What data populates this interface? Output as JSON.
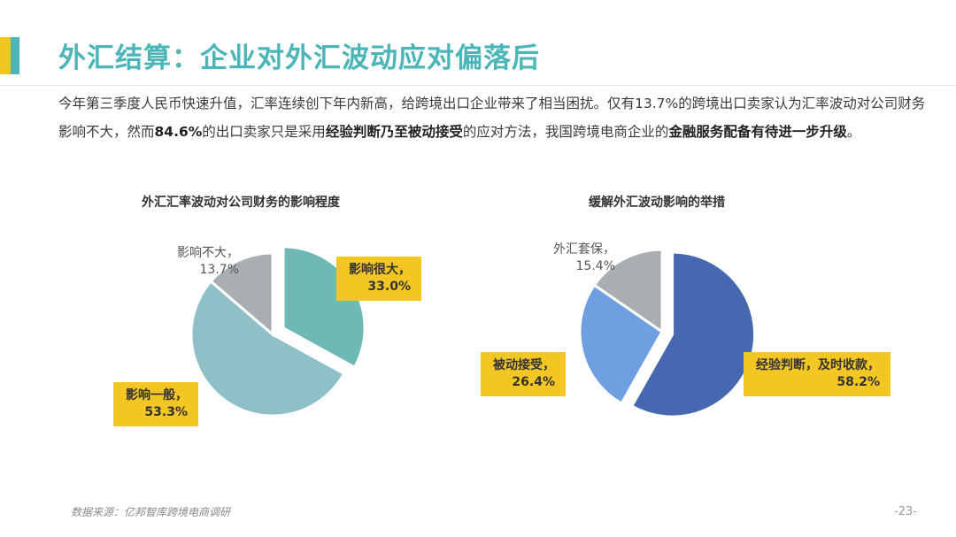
{
  "title": "外汇结算：企业对外汇波动应对偏落后",
  "intro": {
    "part1": "今年第三季度人民币快速升值，汇率连续创下年内新高，给跨境出口企业带来了相当困扰。仅有13.7%的跨境出口卖家认为汇率波动对公司财务影响不大，然而",
    "bold1": "84.6%",
    "part2": "的出口卖家只是采用",
    "bold2": "经验判断乃至被动接受",
    "part3": "的应对方法，我国跨境电商企业的",
    "bold3": "金融服务配备有待进一步升级",
    "part4": "。"
  },
  "colors": {
    "title": "#4bb5b8",
    "accent_yellow": "#f3c51f",
    "accent_teal": "#4bb5b8",
    "callout_bg": "#f3c624"
  },
  "chart_data": [
    {
      "type": "pie",
      "title": "外汇汇率波动对公司财务的影响程度",
      "slices": [
        {
          "label": "影响很大，",
          "value": 33.0,
          "pct_label": "33.0%",
          "color": "#6eb8b6",
          "exploded": true,
          "callout": true
        },
        {
          "label": "影响一般，",
          "value": 53.3,
          "pct_label": "53.3%",
          "color": "#8fc0c8",
          "exploded": false,
          "callout": true
        },
        {
          "label": "影响不大，",
          "value": 13.7,
          "pct_label": "13.7%",
          "color": "#a9aeb2",
          "exploded": false,
          "callout": false
        }
      ]
    },
    {
      "type": "pie",
      "title": "缓解外汇波动影响的举措",
      "slices": [
        {
          "label": "经验判断，及时收款，",
          "value": 58.2,
          "pct_label": "58.2%",
          "color": "#4668b0",
          "exploded": true,
          "callout": true
        },
        {
          "label": "被动接受，",
          "value": 26.4,
          "pct_label": "26.4%",
          "color": "#6f9fe0",
          "exploded": false,
          "callout": true
        },
        {
          "label": "外汇套保，",
          "value": 15.4,
          "pct_label": "15.4%",
          "color": "#a9aeb2",
          "exploded": false,
          "callout": false
        }
      ]
    }
  ],
  "source": "数据来源：亿邦智库跨境电商调研",
  "page_number": "-23-"
}
